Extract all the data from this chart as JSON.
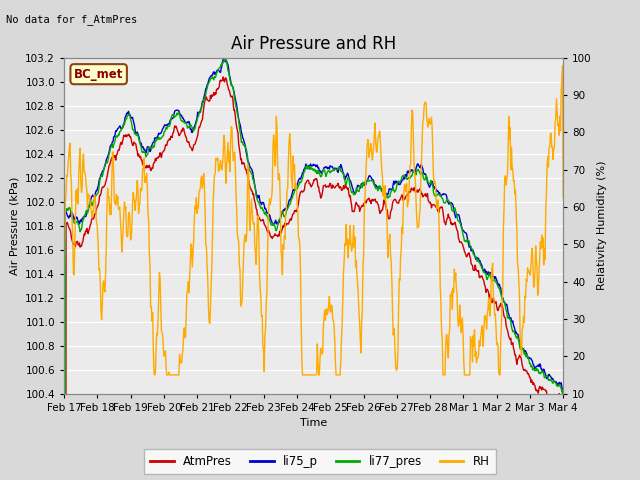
{
  "title": "Air Pressure and RH",
  "top_left_text": "No data for f_AtmPres",
  "box_label": "BC_met",
  "xlabel": "Time",
  "ylabel_left": "Air Pressure (kPa)",
  "ylabel_right": "Relativity Humidity (%)",
  "ylim_left": [
    100.4,
    103.2
  ],
  "ylim_right": [
    10,
    100
  ],
  "yticks_left": [
    100.4,
    100.6,
    100.8,
    101.0,
    101.2,
    101.4,
    101.6,
    101.8,
    102.0,
    102.2,
    102.4,
    102.6,
    102.8,
    103.0,
    103.2
  ],
  "yticks_right": [
    10,
    20,
    30,
    40,
    50,
    60,
    70,
    80,
    90,
    100
  ],
  "xtick_labels": [
    "Feb 17",
    "Feb 18",
    "Feb 19",
    "Feb 20",
    "Feb 21",
    "Feb 22",
    "Feb 23",
    "Feb 24",
    "Feb 25",
    "Feb 26",
    "Feb 27",
    "Feb 28",
    "Mar 1",
    "Mar 2",
    "Mar 3",
    "Mar 4"
  ],
  "line_colors": {
    "AtmPres": "#cc0000",
    "li75_p": "#0000cc",
    "li77_pres": "#00aa00",
    "RH": "#ffaa00"
  },
  "background_color": "#d9d9d9",
  "plot_bg_color": "#ebebeb",
  "grid_color": "#ffffff",
  "title_fontsize": 12,
  "label_fontsize": 8,
  "tick_fontsize": 7.5
}
